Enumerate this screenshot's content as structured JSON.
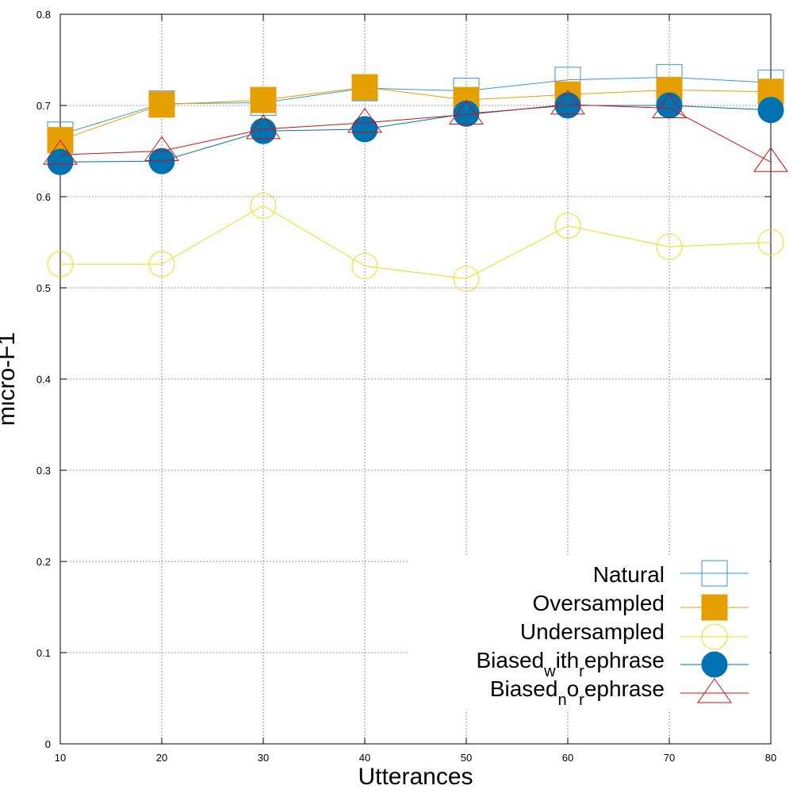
{
  "chart_data": {
    "type": "line",
    "title": "",
    "xlabel": "Utterances",
    "ylabel": "micro-F1",
    "x": [
      10,
      20,
      30,
      40,
      50,
      60,
      70,
      80
    ],
    "xlim": [
      10,
      80
    ],
    "ylim": [
      0,
      0.8
    ],
    "xticks": [
      "10",
      "20",
      "30",
      "40",
      "50",
      "60",
      "70",
      "80"
    ],
    "yticks": [
      "0",
      "0.1",
      "0.2",
      "0.3",
      "0.4",
      "0.5",
      "0.6",
      "0.7",
      "0.8"
    ],
    "grid": true,
    "legend_position": "bottom-right",
    "series": [
      {
        "name": "Natural",
        "color": "#3399cc",
        "marker": "open-square",
        "values": [
          0.668,
          0.702,
          0.703,
          0.719,
          0.716,
          0.728,
          0.731,
          0.725
        ]
      },
      {
        "name": "Oversampled",
        "color": "#e69f00",
        "marker": "filled-square",
        "values": [
          0.662,
          0.701,
          0.706,
          0.72,
          0.706,
          0.712,
          0.717,
          0.715
        ]
      },
      {
        "name": "Undersampled",
        "color": "#e8e010",
        "marker": "open-circle",
        "values": [
          0.526,
          0.526,
          0.59,
          0.524,
          0.51,
          0.568,
          0.545,
          0.55
        ]
      },
      {
        "name": "Biased_with_rephrase",
        "color": "#0072b2",
        "marker": "filled-circle",
        "values": [
          0.638,
          0.639,
          0.672,
          0.674,
          0.691,
          0.7,
          0.7,
          0.695
        ]
      },
      {
        "name": "Biased_no_rephrase",
        "color": "#cc1111",
        "marker": "open-triangle",
        "values": [
          0.646,
          0.65,
          0.674,
          0.681,
          0.69,
          0.701,
          0.697,
          0.638
        ]
      }
    ]
  },
  "legend": {
    "natural": "Natural",
    "oversampled": "Oversampled",
    "undersampled": "Undersampled",
    "biased_with": {
      "p1": "Biased",
      "s1": "w",
      "p2": "ith",
      "s2": "r",
      "p3": "ephrase"
    },
    "biased_no": {
      "p1": "Biased",
      "s1": "n",
      "p2": "o",
      "s2": "r",
      "p3": "ephrase"
    }
  }
}
